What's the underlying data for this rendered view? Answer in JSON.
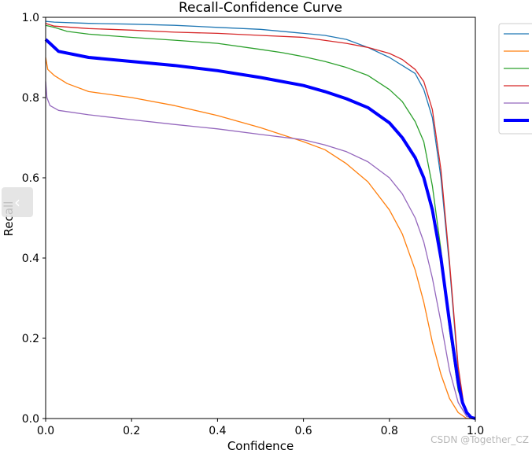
{
  "chart_data": {
    "type": "line",
    "title": "Recall-Confidence Curve",
    "xlabel": "Confidence",
    "ylabel": "Recall",
    "xlim": [
      0,
      1
    ],
    "ylim": [
      0,
      1
    ],
    "xticks": [
      "0.0",
      "0.2",
      "0.4",
      "0.6",
      "0.8",
      "1.0"
    ],
    "yticks": [
      "0.0",
      "0.2",
      "0.4",
      "0.6",
      "0.8",
      "1.0"
    ],
    "grid": false,
    "legend_placement": "outside-top-right",
    "series": [
      {
        "color": "#1f77b4",
        "x": [
          0.0,
          0.02,
          0.1,
          0.2,
          0.3,
          0.4,
          0.5,
          0.6,
          0.65,
          0.7,
          0.75,
          0.8,
          0.83,
          0.86,
          0.88,
          0.9,
          0.92,
          0.94,
          0.96,
          0.975,
          0.99,
          1.0
        ],
        "y": [
          0.99,
          0.988,
          0.985,
          0.983,
          0.98,
          0.975,
          0.97,
          0.96,
          0.955,
          0.945,
          0.925,
          0.9,
          0.88,
          0.86,
          0.82,
          0.75,
          0.6,
          0.38,
          0.12,
          0.02,
          0.0,
          0.0
        ]
      },
      {
        "color": "#ff7f0e",
        "x": [
          0.0,
          0.005,
          0.02,
          0.05,
          0.1,
          0.2,
          0.3,
          0.4,
          0.5,
          0.6,
          0.65,
          0.7,
          0.75,
          0.8,
          0.83,
          0.86,
          0.88,
          0.9,
          0.92,
          0.94,
          0.96,
          0.98,
          1.0
        ],
        "y": [
          0.9,
          0.87,
          0.855,
          0.835,
          0.815,
          0.8,
          0.78,
          0.755,
          0.725,
          0.69,
          0.67,
          0.635,
          0.59,
          0.52,
          0.46,
          0.37,
          0.29,
          0.19,
          0.11,
          0.05,
          0.015,
          0.0,
          0.0
        ]
      },
      {
        "color": "#2ca02c",
        "x": [
          0.0,
          0.02,
          0.05,
          0.1,
          0.2,
          0.3,
          0.4,
          0.5,
          0.55,
          0.6,
          0.65,
          0.7,
          0.75,
          0.8,
          0.83,
          0.86,
          0.88,
          0.9,
          0.92,
          0.94,
          0.96,
          0.98,
          1.0
        ],
        "y": [
          0.98,
          0.975,
          0.965,
          0.958,
          0.95,
          0.943,
          0.935,
          0.92,
          0.912,
          0.902,
          0.89,
          0.875,
          0.855,
          0.82,
          0.79,
          0.74,
          0.69,
          0.58,
          0.42,
          0.22,
          0.07,
          0.01,
          0.0
        ]
      },
      {
        "color": "#d62728",
        "x": [
          0.0,
          0.02,
          0.1,
          0.2,
          0.3,
          0.4,
          0.5,
          0.6,
          0.7,
          0.75,
          0.8,
          0.83,
          0.86,
          0.88,
          0.9,
          0.92,
          0.94,
          0.96,
          0.975,
          0.99,
          1.0
        ],
        "y": [
          0.985,
          0.978,
          0.972,
          0.968,
          0.963,
          0.96,
          0.955,
          0.95,
          0.935,
          0.925,
          0.91,
          0.895,
          0.87,
          0.84,
          0.77,
          0.62,
          0.39,
          0.13,
          0.02,
          0.0,
          0.0
        ]
      },
      {
        "color": "#9467bd",
        "x": [
          0.0,
          0.003,
          0.01,
          0.03,
          0.1,
          0.2,
          0.3,
          0.4,
          0.5,
          0.6,
          0.65,
          0.7,
          0.75,
          0.8,
          0.83,
          0.86,
          0.88,
          0.9,
          0.92,
          0.94,
          0.96,
          0.98,
          1.0
        ],
        "y": [
          0.84,
          0.8,
          0.78,
          0.768,
          0.757,
          0.745,
          0.733,
          0.722,
          0.708,
          0.695,
          0.682,
          0.665,
          0.64,
          0.6,
          0.56,
          0.5,
          0.44,
          0.35,
          0.24,
          0.12,
          0.04,
          0.005,
          0.0
        ]
      },
      {
        "color": "#0000ff",
        "x": [
          0.0,
          0.01,
          0.03,
          0.1,
          0.2,
          0.3,
          0.4,
          0.5,
          0.6,
          0.65,
          0.7,
          0.75,
          0.8,
          0.83,
          0.86,
          0.88,
          0.9,
          0.92,
          0.94,
          0.96,
          0.97,
          0.98,
          0.99,
          1.0
        ],
        "y": [
          0.945,
          0.935,
          0.915,
          0.9,
          0.89,
          0.88,
          0.867,
          0.85,
          0.83,
          0.815,
          0.797,
          0.775,
          0.737,
          0.7,
          0.65,
          0.6,
          0.52,
          0.4,
          0.24,
          0.09,
          0.04,
          0.015,
          0.003,
          0.0
        ],
        "line_width": "bold"
      }
    ]
  },
  "watermark": "CSDN @Together_CZ",
  "nav": {
    "prev_glyph": "‹"
  }
}
